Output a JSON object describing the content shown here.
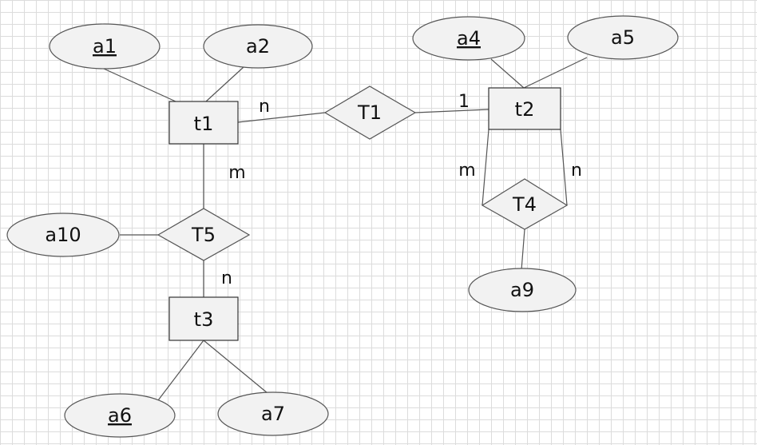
{
  "entities": [
    {
      "id": "t1",
      "label": "t1"
    },
    {
      "id": "t2",
      "label": "t2"
    },
    {
      "id": "t3",
      "label": "t3"
    }
  ],
  "relationships": [
    {
      "id": "T1",
      "label": "T1"
    },
    {
      "id": "T4",
      "label": "T4"
    },
    {
      "id": "T5",
      "label": "T5"
    }
  ],
  "attributes": [
    {
      "id": "a1",
      "label": "a1",
      "key": true
    },
    {
      "id": "a2",
      "label": "a2",
      "key": false
    },
    {
      "id": "a4",
      "label": "a4",
      "key": true
    },
    {
      "id": "a5",
      "label": "a5",
      "key": false
    },
    {
      "id": "a6",
      "label": "a6",
      "key": true
    },
    {
      "id": "a7",
      "label": "a7",
      "key": false
    },
    {
      "id": "a9",
      "label": "a9",
      "key": false
    },
    {
      "id": "a10",
      "label": "a10",
      "key": false
    }
  ],
  "cardinalities": {
    "t1_T1": "n",
    "t2_T1": "1",
    "t1_T5": "m",
    "t3_T5": "n",
    "t2_T4_left": "m",
    "t2_T4_right": "n"
  }
}
